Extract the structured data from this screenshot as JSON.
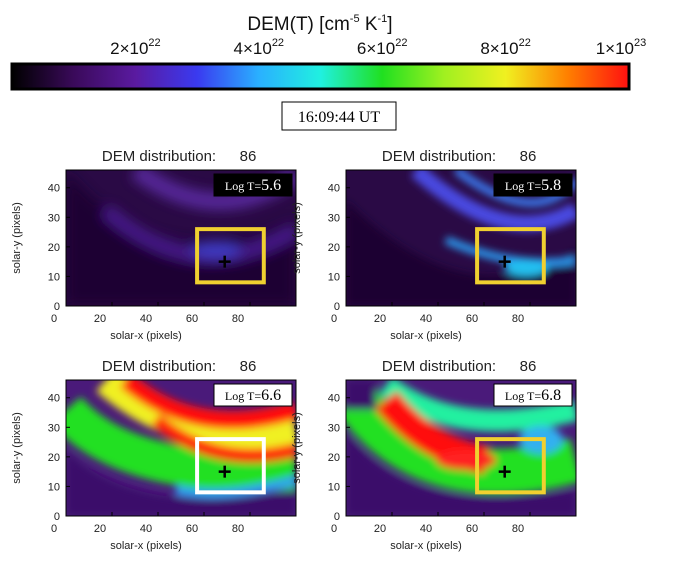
{
  "colorbar": {
    "title_main": "DEM(T) [cm",
    "title_exp1": "-5",
    "title_mid": " K",
    "title_exp2": "-1",
    "title_end": "]",
    "ticks": [
      {
        "value": 2e+22,
        "mant": "2×10",
        "exp": "22"
      },
      {
        "value": 4e+22,
        "mant": "4×10",
        "exp": "22"
      },
      {
        "value": 6e+22,
        "mant": "6×10",
        "exp": "22"
      },
      {
        "value": 8e+22,
        "mant": "8×10",
        "exp": "22"
      },
      {
        "value": 1e+23,
        "mant": "1×10",
        "exp": "23"
      }
    ],
    "range": [
      0,
      1e+23
    ],
    "colors": [
      "#000000",
      "#3a0a5a",
      "#5a1aa0",
      "#3a3af0",
      "#2ab0ff",
      "#20f0e0",
      "#20e020",
      "#a0f020",
      "#f0f020",
      "#ff8000",
      "#ff1010"
    ]
  },
  "timestamp": "16:09:44 UT",
  "chart_data": [
    {
      "type": "heatmap",
      "title_label": "DEM distribution:",
      "title_value": "86",
      "log_t_prefix": "Log T=",
      "log_t": "5.6",
      "xlabel": "solar-x (pixels)",
      "ylabel": "solar-y (pixels)",
      "xticks": [
        0,
        20,
        40,
        60,
        80
      ],
      "yticks": [
        0,
        10,
        20,
        30,
        40
      ],
      "xlim": [
        0,
        100
      ],
      "ylim": [
        0,
        46
      ],
      "marker": {
        "x": 69,
        "y": 15
      },
      "box": {
        "x": [
          57,
          86
        ],
        "y": [
          8,
          26
        ],
        "color": "#f0d030"
      }
    },
    {
      "type": "heatmap",
      "title_label": "DEM distribution:",
      "title_value": "86",
      "log_t_prefix": "Log T=",
      "log_t": "5.8",
      "xlabel": "solar-x (pixels)",
      "ylabel": "solar-y (pixels)",
      "xticks": [
        0,
        20,
        40,
        60,
        80
      ],
      "yticks": [
        0,
        10,
        20,
        30,
        40
      ],
      "xlim": [
        0,
        100
      ],
      "ylim": [
        0,
        46
      ],
      "marker": {
        "x": 69,
        "y": 15
      },
      "box": {
        "x": [
          57,
          86
        ],
        "y": [
          8,
          26
        ],
        "color": "#f0d030"
      }
    },
    {
      "type": "heatmap",
      "title_label": "DEM distribution:",
      "title_value": "86",
      "log_t_prefix": "Log T=",
      "log_t": "6.6",
      "xlabel": "solar-x (pixels)",
      "ylabel": "solar-y (pixels)",
      "xticks": [
        0,
        20,
        40,
        60,
        80
      ],
      "yticks": [
        0,
        10,
        20,
        30,
        40
      ],
      "xlim": [
        0,
        100
      ],
      "ylim": [
        0,
        46
      ],
      "marker": {
        "x": 69,
        "y": 15
      },
      "box": {
        "x": [
          57,
          86
        ],
        "y": [
          8,
          26
        ],
        "color": "#ffffff"
      }
    },
    {
      "type": "heatmap",
      "title_label": "DEM distribution:",
      "title_value": "86",
      "log_t_prefix": "Log T=",
      "log_t": "6.8",
      "xlabel": "solar-x (pixels)",
      "ylabel": "solar-y (pixels)",
      "xticks": [
        0,
        20,
        40,
        60,
        80
      ],
      "yticks": [
        0,
        10,
        20,
        30,
        40
      ],
      "xlim": [
        0,
        100
      ],
      "ylim": [
        0,
        46
      ],
      "marker": {
        "x": 69,
        "y": 15
      },
      "box": {
        "x": [
          57,
          86
        ],
        "y": [
          8,
          26
        ],
        "color": "#f0d030"
      }
    }
  ]
}
